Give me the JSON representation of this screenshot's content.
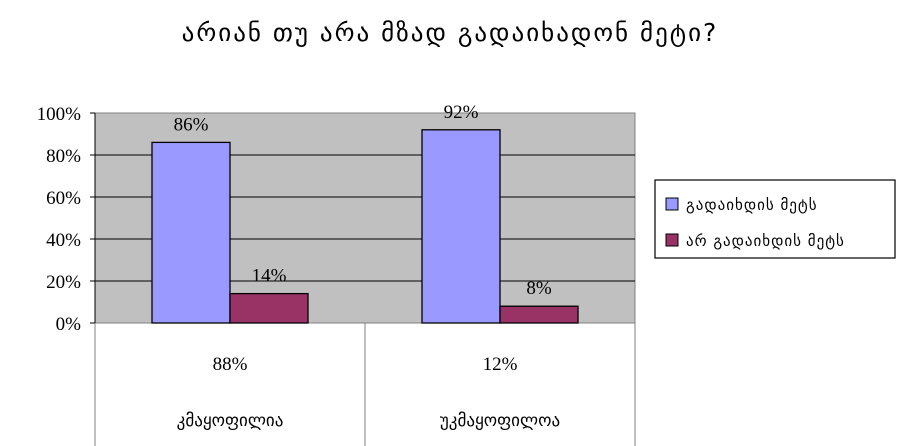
{
  "chart_data": {
    "type": "bar",
    "title": "არიან თუ არა მზად გადაიხადონ მეტი?",
    "categories": [
      "კმაყოფილია",
      "უკმაყოფილოა"
    ],
    "category_values": [
      "88%",
      "12%"
    ],
    "series": [
      {
        "name": "გადაიხდის მეტს",
        "values": [
          86,
          92
        ],
        "labels": [
          "86%",
          "92%"
        ],
        "color": "#9999ff"
      },
      {
        "name": "არ გადაიხდის მეტს",
        "values": [
          14,
          8
        ],
        "labels": [
          "14%",
          "8%"
        ],
        "color": "#993366"
      }
    ],
    "yticks": [
      "0%",
      "20%",
      "40%",
      "60%",
      "80%",
      "100%"
    ],
    "ylim": [
      0,
      100
    ],
    "plot_background": "#c0c0c0",
    "grid": true,
    "legend_position": "right"
  }
}
